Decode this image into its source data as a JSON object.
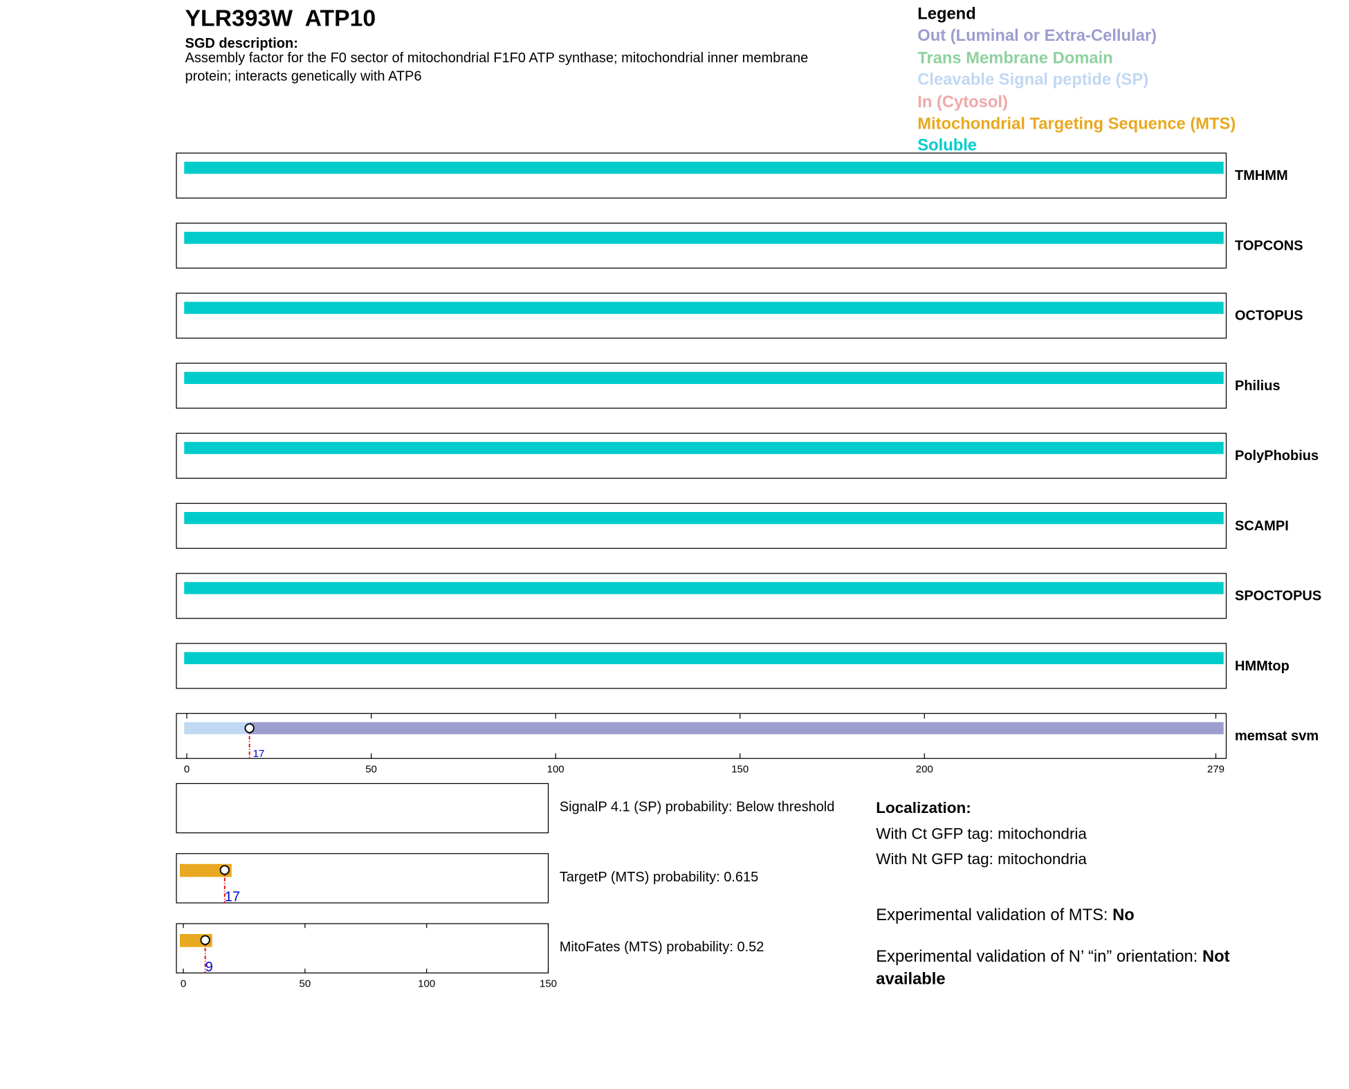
{
  "header": {
    "title": "YLR393W  ATP10",
    "description_label": "SGD description:",
    "description": "Assembly factor for the F0 sector of mitochondrial F1F0 ATP synthase; mitochondrial inner membrane protein; interacts genetically with ATP6"
  },
  "legend": {
    "title": "Legend",
    "items": [
      {
        "label": "Out (Luminal or Extra-Cellular)",
        "color": "#9d9dcf"
      },
      {
        "label": "Trans Membrane Domain",
        "color": "#8fd19e"
      },
      {
        "label": "Cleavable Signal peptide (SP)",
        "color": "#c0d8f2"
      },
      {
        "label": "In (Cytosol)",
        "color": "#f0a8a8"
      },
      {
        "label": "Mitochondrial Targeting Sequence (MTS)",
        "color": "#e8a820"
      },
      {
        "label": "Soluble",
        "color": "#00cccc"
      }
    ]
  },
  "sequence_axis": {
    "xlim": [
      0,
      279
    ],
    "xticks": [
      0,
      50,
      100,
      150,
      200,
      279
    ]
  },
  "tracks": [
    {
      "name": "TMHMM",
      "segments": [
        {
          "start": 0,
          "end": 279,
          "color": "#00cccc"
        }
      ]
    },
    {
      "name": "TOPCONS",
      "segments": [
        {
          "start": 0,
          "end": 279,
          "color": "#00cccc"
        }
      ]
    },
    {
      "name": "OCTOPUS",
      "segments": [
        {
          "start": 0,
          "end": 279,
          "color": "#00cccc"
        }
      ]
    },
    {
      "name": "Philius",
      "segments": [
        {
          "start": 0,
          "end": 279,
          "color": "#00cccc"
        }
      ]
    },
    {
      "name": "PolyPhobius",
      "segments": [
        {
          "start": 0,
          "end": 279,
          "color": "#00cccc"
        }
      ]
    },
    {
      "name": "SCAMPI",
      "segments": [
        {
          "start": 0,
          "end": 279,
          "color": "#00cccc"
        }
      ]
    },
    {
      "name": "SPOCTOPUS",
      "segments": [
        {
          "start": 0,
          "end": 279,
          "color": "#00cccc"
        }
      ]
    },
    {
      "name": "HMMtop",
      "segments": [
        {
          "start": 0,
          "end": 279,
          "color": "#00cccc"
        }
      ]
    },
    {
      "name": "memsat svm",
      "segments": [
        {
          "start": 0,
          "end": 17,
          "color": "#c0d8f2"
        },
        {
          "start": 17,
          "end": 279,
          "color": "#9d9dcf"
        }
      ],
      "cleavage": 17
    }
  ],
  "predictions": {
    "xlim": [
      0,
      150
    ],
    "xticks": [
      0,
      50,
      100,
      150
    ],
    "panels": [
      {
        "label": "SignalP 4.1 (SP) probability: Below threshold"
      },
      {
        "label": "TargetP (MTS) probability: 0.615",
        "segment": {
          "start": 0,
          "end": 17,
          "color": "#e8a820"
        },
        "cleavage": 17
      },
      {
        "label": "MitoFates (MTS) probability: 0.52",
        "segment": {
          "start": 0,
          "end": 9,
          "color": "#e8a820"
        },
        "cleavage": 9
      }
    ]
  },
  "localization": {
    "title": "Localization:",
    "lines": [
      "With Ct GFP tag: mitochondria",
      "With Nt GFP tag: mitochondria"
    ]
  },
  "validation": [
    {
      "label": "Experimental validation of MTS:",
      "value": "No"
    },
    {
      "label": "Experimental validation of N’ “in” orientation:",
      "value": "Not available"
    }
  ]
}
